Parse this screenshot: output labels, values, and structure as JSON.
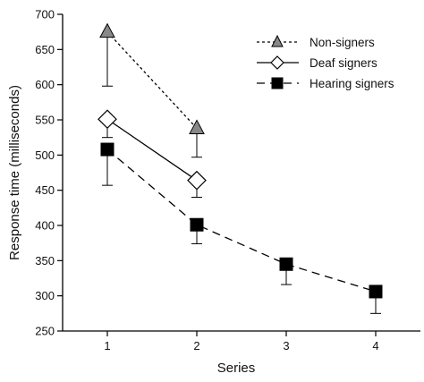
{
  "chart_data": {
    "type": "line",
    "title": "",
    "xlabel": "Series",
    "ylabel": "Response time (milliseconds)",
    "x_ticks": [
      1,
      2,
      3,
      4
    ],
    "y_ticks": [
      250,
      300,
      350,
      400,
      450,
      500,
      550,
      600,
      650,
      700
    ],
    "xlim": [
      0.5,
      4.5
    ],
    "ylim": [
      250,
      700
    ],
    "grid": false,
    "legend_position": "top-right",
    "series": [
      {
        "name": "Non-signers",
        "marker": "triangle",
        "line_style": "dotted",
        "marker_fill": "#888888",
        "x": [
          1,
          2
        ],
        "y": [
          675,
          538
        ],
        "error_lower": [
          598,
          497
        ]
      },
      {
        "name": "Deaf signers",
        "marker": "diamond",
        "line_style": "solid",
        "marker_fill": "#ffffff",
        "x": [
          1,
          2
        ],
        "y": [
          551,
          464
        ],
        "error_lower": [
          525,
          440
        ]
      },
      {
        "name": "Hearing signers",
        "marker": "square",
        "line_style": "dashed",
        "marker_fill": "#000000",
        "x": [
          1,
          2,
          3,
          4
        ],
        "y": [
          508,
          401,
          345,
          306
        ],
        "error_lower": [
          457,
          374,
          316,
          275
        ]
      }
    ]
  }
}
